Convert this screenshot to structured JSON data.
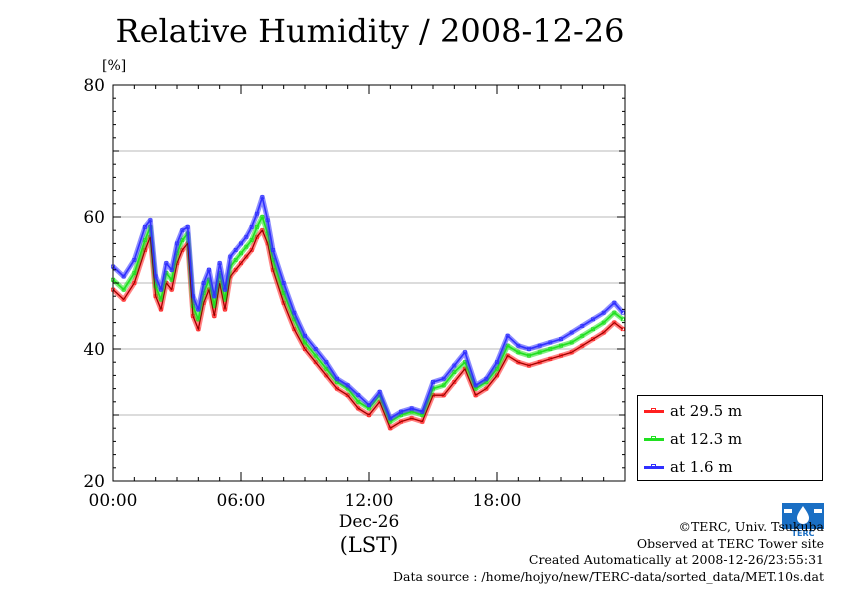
{
  "chart_data": {
    "type": "line",
    "title": "Relative Humidity / 2008-12-26",
    "ylabel": "[%]",
    "xlabel": "(LST)",
    "x_date_label": "Dec-26",
    "ylim": [
      20,
      80
    ],
    "xlim": [
      0,
      24
    ],
    "yticks": [
      "20",
      "40",
      "60",
      "80"
    ],
    "xticks": [
      "00:00",
      "06:00",
      "12:00",
      "18:00"
    ],
    "x_hours": [
      0,
      0.5,
      1.0,
      1.5,
      1.75,
      2.0,
      2.25,
      2.5,
      2.75,
      3.0,
      3.25,
      3.5,
      3.75,
      4.0,
      4.25,
      4.5,
      4.75,
      5.0,
      5.25,
      5.5,
      5.75,
      6.0,
      6.25,
      6.5,
      6.75,
      7.0,
      7.25,
      7.5,
      8.0,
      8.5,
      9.0,
      9.5,
      10.0,
      10.5,
      11.0,
      11.5,
      12.0,
      12.5,
      13.0,
      13.5,
      14.0,
      14.5,
      15.0,
      15.5,
      16.0,
      16.5,
      17.0,
      17.5,
      18.0,
      18.5,
      19.0,
      19.5,
      20.0,
      20.5,
      21.0,
      21.5,
      22.0,
      22.5,
      23.0,
      23.5,
      23.9
    ],
    "grid": "horizontal",
    "legend_position": "right",
    "series": [
      {
        "name": "at 29.5 m",
        "color": "#ff2020",
        "values": [
          49,
          47.5,
          50,
          55,
          57,
          48,
          46,
          50,
          49,
          53,
          55,
          56,
          45,
          43,
          47,
          49,
          45,
          50,
          46,
          51,
          52,
          53,
          54,
          55,
          57,
          58,
          56,
          52,
          47,
          43,
          40,
          38,
          36,
          34,
          33,
          31,
          30,
          32,
          28,
          29,
          29.5,
          29,
          33,
          33,
          35,
          37,
          33,
          34,
          36,
          39,
          38,
          37.5,
          38,
          38.5,
          39,
          39.5,
          40.5,
          41.5,
          42.5,
          44,
          43
        ]
      },
      {
        "name": "at 12.3 m",
        "color": "#20e020",
        "values": [
          50.5,
          49,
          51.5,
          56.5,
          58.5,
          49.5,
          47.5,
          51.5,
          50.5,
          54.5,
          56.5,
          57.5,
          46.5,
          44.5,
          48.5,
          50.5,
          46.5,
          51.5,
          47.5,
          52.5,
          53.5,
          54.5,
          55.5,
          56.5,
          58.5,
          60,
          57.5,
          53.5,
          48.5,
          44.5,
          41,
          39,
          37,
          35,
          34,
          32,
          31,
          33,
          29,
          30,
          30.5,
          30,
          34,
          34.5,
          36.5,
          38,
          34,
          35,
          37,
          40.5,
          39.5,
          39,
          39.5,
          40,
          40.5,
          41,
          42,
          43,
          44,
          45.5,
          44.5
        ]
      },
      {
        "name": "at 1.6 m",
        "color": "#3030ff",
        "values": [
          52.5,
          51,
          53.5,
          58.5,
          59.5,
          51,
          49,
          53,
          52,
          56,
          58,
          58.5,
          48,
          46,
          50,
          52,
          48,
          53,
          49,
          54,
          55,
          56,
          57,
          58.5,
          60.5,
          63,
          59.5,
          55,
          50,
          45.5,
          42,
          40,
          38,
          35.5,
          34.5,
          33,
          31.5,
          33.5,
          29.5,
          30.5,
          31,
          30.5,
          35,
          35.5,
          37.5,
          39.5,
          34.5,
          35.5,
          38,
          42,
          40.5,
          40,
          40.5,
          41,
          41.5,
          42.5,
          43.5,
          44.5,
          45.5,
          47,
          45.5
        ]
      }
    ]
  },
  "footer": {
    "copyright": "©TERC, Univ. Tsukuba",
    "site": "Observed at TERC Tower site",
    "created": "Created Automatically at 2008-12-26/23:55:31",
    "source": "Data source : /home/hojyo/new/TERC-data/sorted_data/MET.10s.dat",
    "logo_text": "TERC"
  }
}
